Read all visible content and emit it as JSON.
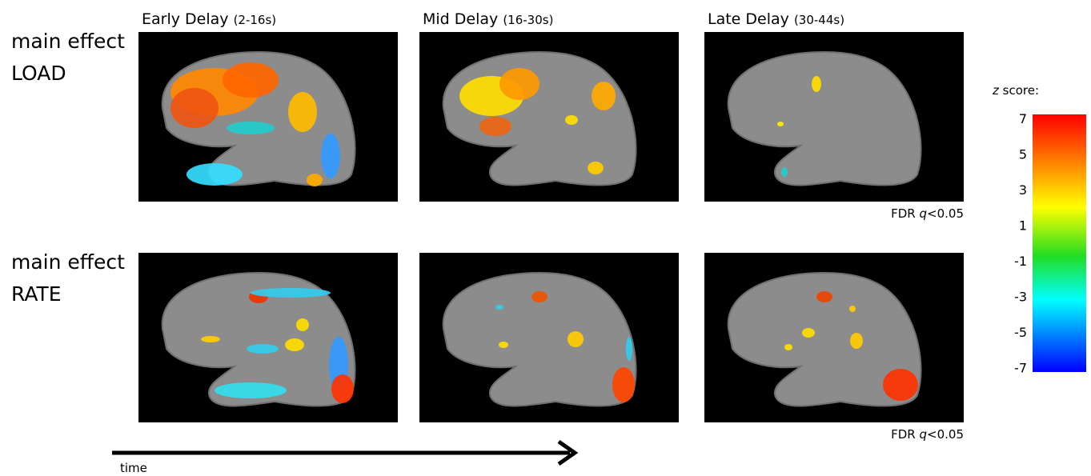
{
  "columns": [
    {
      "title": "Early Delay",
      "range": "(2-16s)"
    },
    {
      "title": "Mid Delay",
      "range": "(16-30s)"
    },
    {
      "title": "Late Delay",
      "range": "(30-44s)"
    }
  ],
  "rows": [
    {
      "lines": [
        "main effect",
        "LOAD"
      ]
    },
    {
      "lines": [
        "main effect",
        "RATE"
      ]
    }
  ],
  "threshold": {
    "prefix": "FDR",
    "symbol": "q",
    "suffix": "<0.05"
  },
  "colorbar": {
    "symbol": "z",
    "label": "score:",
    "ticks": [
      "7",
      "5",
      "3",
      "1",
      "-1",
      "-3",
      "-5",
      "-7"
    ]
  },
  "time_label": "time"
}
